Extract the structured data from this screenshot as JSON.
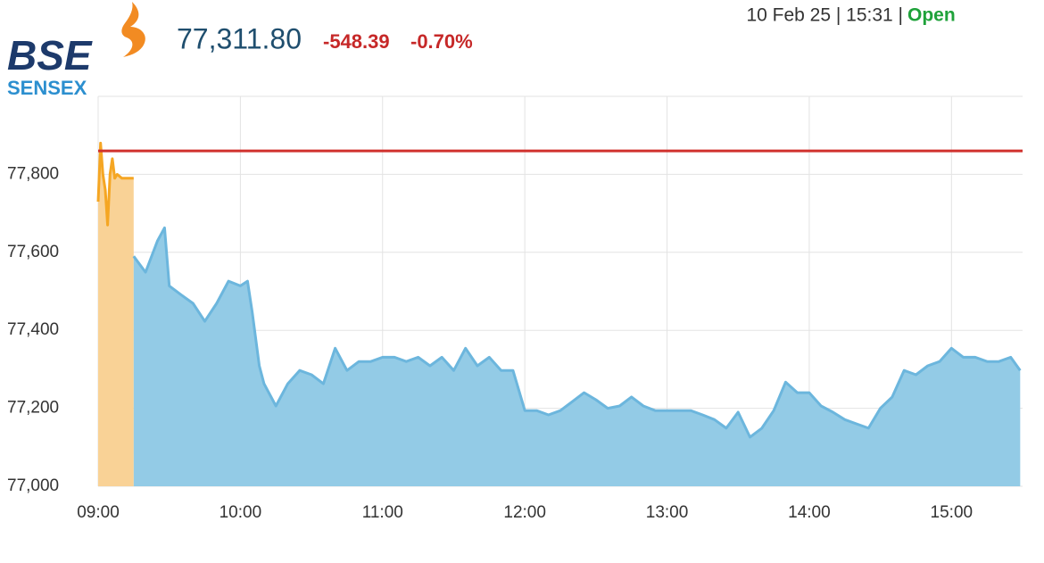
{
  "header": {
    "logo": "BSE",
    "index_name": "SENSEX",
    "price": "77,311.80",
    "change": "-548.39",
    "change_pct": "-0.70%",
    "timestamp": "10 Feb 25 | 15:31 |",
    "status": "Open"
  },
  "chart_data": {
    "type": "area",
    "xlim": [
      "09:00",
      "15:30"
    ],
    "xticks": [
      "09:00",
      "10:00",
      "11:00",
      "12:00",
      "13:00",
      "14:00",
      "15:00"
    ],
    "ylim": [
      77000,
      78000
    ],
    "yticks": [
      {
        "value": 77000,
        "label": "77,000"
      },
      {
        "value": 77200,
        "label": "77,200"
      },
      {
        "value": 77400,
        "label": "77,400"
      },
      {
        "value": 77600,
        "label": "77,600"
      },
      {
        "value": 77800,
        "label": "77,800"
      }
    ],
    "grid": true,
    "reference_line": {
      "value": 77860.19,
      "color": "#d0312d"
    },
    "series": [
      {
        "color": "#f5a623",
        "fill": "#f9d296",
        "x": [
          "09:00",
          "09:01",
          "09:02",
          "09:03",
          "09:04",
          "09:05",
          "09:06",
          "09:07",
          "09:08",
          "09:10",
          "09:15"
        ],
        "values": [
          77730,
          77880,
          77800,
          77760,
          77670,
          77800,
          77840,
          77790,
          77800,
          77790,
          77790
        ]
      },
      {
        "color": "#6cb6dd",
        "fill": "#93cbe6",
        "x": [
          "09:15",
          "09:20",
          "09:25",
          "09:28",
          "09:30",
          "09:35",
          "09:40",
          "09:45",
          "09:50",
          "09:55",
          "10:00",
          "10:03",
          "10:05",
          "10:08",
          "10:10",
          "10:15",
          "10:20",
          "10:25",
          "10:30",
          "10:35",
          "10:40",
          "10:45",
          "10:50",
          "10:55",
          "11:00",
          "11:05",
          "11:10",
          "11:15",
          "11:20",
          "11:25",
          "11:30",
          "11:35",
          "11:40",
          "11:45",
          "11:50",
          "11:55",
          "12:00",
          "12:05",
          "12:10",
          "12:15",
          "12:20",
          "12:25",
          "12:30",
          "12:35",
          "12:40",
          "12:45",
          "12:50",
          "12:55",
          "13:00",
          "13:05",
          "13:10",
          "13:15",
          "13:20",
          "13:25",
          "13:30",
          "13:35",
          "13:40",
          "13:45",
          "13:50",
          "13:55",
          "14:00",
          "14:05",
          "14:10",
          "14:15",
          "14:20",
          "14:25",
          "14:30",
          "14:35",
          "14:40",
          "14:45",
          "14:50",
          "14:55",
          "15:00",
          "15:05",
          "15:10",
          "15:15",
          "15:20",
          "15:25",
          "15:29"
        ],
        "values": [
          77590,
          77549,
          77629,
          77663,
          77514,
          77491,
          77469,
          77423,
          77469,
          77526,
          77514,
          77526,
          77446,
          77309,
          77263,
          77206,
          77263,
          77297,
          77286,
          77263,
          77354,
          77297,
          77320,
          77320,
          77331,
          77331,
          77320,
          77331,
          77309,
          77331,
          77297,
          77354,
          77309,
          77331,
          77297,
          77297,
          77194,
          77194,
          77183,
          77194,
          77217,
          77240,
          77222,
          77200,
          77206,
          77229,
          77206,
          77194,
          77194,
          77194,
          77194,
          77183,
          77171,
          77149,
          77190,
          77126,
          77149,
          77194,
          77267,
          77240,
          77240,
          77206,
          77190,
          77171,
          77160,
          77149,
          77200,
          77229,
          77297,
          77286,
          77309,
          77320,
          77354,
          77331,
          77331,
          77320,
          77320,
          77331,
          77297
        ]
      }
    ]
  }
}
